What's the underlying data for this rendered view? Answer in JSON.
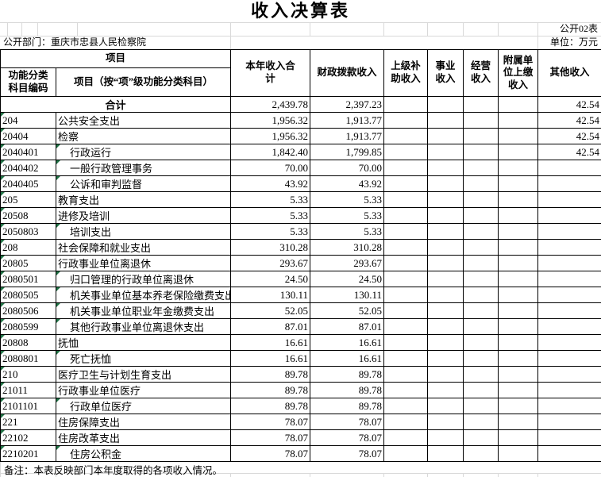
{
  "meta": {
    "title": "收入决算表",
    "sheet_label": "公开02表",
    "department_label": "公开部门：重庆市忠县人民检察院",
    "unit_label": "单位：万元",
    "note": "备注：本表反映部门本年度取得的各项收入情况。"
  },
  "colors": {
    "flag_green": "#217346",
    "grid_gray": "#d9d9d9",
    "border_black": "#000000"
  },
  "table": {
    "header": {
      "project_group": "项目",
      "code": "功能分类\n科目编码",
      "item": "项目（按“项”级功能分类科目）",
      "total": "本年收入合\n计",
      "fiscal": "财政拨款收入",
      "upper": "上级补\n助收入",
      "business": "事业\n收入",
      "operating": "经营\n收入",
      "affiliate": "附属单\n位上缴\n收入",
      "other": "其他收入"
    },
    "rows": [
      {
        "merged": true,
        "name": "合计",
        "total": "2,439.78",
        "fiscal": "2,397.23",
        "other": "42.54"
      },
      {
        "code": "204",
        "name": "公共安全支出",
        "code_flag": true,
        "total": "1,956.32",
        "fiscal": "1,913.77",
        "other": "42.54"
      },
      {
        "code": "20404",
        "name": "检察",
        "code_flag": true,
        "total": "1,956.32",
        "fiscal": "1,913.77",
        "other": "42.54"
      },
      {
        "code": "2040401",
        "name": "行政运行",
        "indent": true,
        "code_flag": true,
        "name_flag": true,
        "total": "1,842.40",
        "fiscal": "1,799.85",
        "other": "42.54"
      },
      {
        "code": "2040402",
        "name": "一般行政管理事务",
        "indent": true,
        "code_flag": true,
        "name_flag": true,
        "total": "70.00",
        "fiscal": "70.00"
      },
      {
        "code": "2040405",
        "name": "公诉和审判监督",
        "indent": true,
        "code_flag": true,
        "name_flag": true,
        "total": "43.92",
        "fiscal": "43.92"
      },
      {
        "code": "205",
        "name": "教育支出",
        "code_flag": true,
        "total": "5.33",
        "fiscal": "5.33"
      },
      {
        "code": "20508",
        "name": "进修及培训",
        "code_flag": true,
        "total": "5.33",
        "fiscal": "5.33"
      },
      {
        "code": "2050803",
        "name": "培训支出",
        "indent": true,
        "code_flag": true,
        "name_flag": true,
        "total": "5.33",
        "fiscal": "5.33"
      },
      {
        "code": "208",
        "name": "社会保障和就业支出",
        "code_flag": true,
        "total": "310.28",
        "fiscal": "310.28"
      },
      {
        "code": "20805",
        "name": "行政事业单位离退休",
        "code_flag": true,
        "total": "293.67",
        "fiscal": "293.67"
      },
      {
        "code": "2080501",
        "name": "归口管理的行政单位离退休",
        "indent": true,
        "code_flag": true,
        "name_flag": true,
        "total": "24.50",
        "fiscal": "24.50"
      },
      {
        "code": "2080505",
        "name": "机关事业单位基本养老保险缴费支出",
        "indent": true,
        "code_flag": true,
        "name_flag": true,
        "total": "130.11",
        "fiscal": "130.11"
      },
      {
        "code": "2080506",
        "name": "机关事业单位职业年金缴费支出",
        "indent": true,
        "code_flag": true,
        "name_flag": true,
        "total": "52.05",
        "fiscal": "52.05"
      },
      {
        "code": "2080599",
        "name": "其他行政事业单位离退休支出",
        "indent": true,
        "code_flag": true,
        "name_flag": true,
        "total": "87.01",
        "fiscal": "87.01"
      },
      {
        "code": "20808",
        "name": "抚恤",
        "code_flag": true,
        "total": "16.61",
        "fiscal": "16.61"
      },
      {
        "code": "2080801",
        "name": "死亡抚恤",
        "indent": true,
        "code_flag": true,
        "name_flag": true,
        "total": "16.61",
        "fiscal": "16.61"
      },
      {
        "code": "210",
        "name": "医疗卫生与计划生育支出",
        "code_flag": true,
        "total": "89.78",
        "fiscal": "89.78"
      },
      {
        "code": "21011",
        "name": "行政事业单位医疗",
        "code_flag": true,
        "total": "89.78",
        "fiscal": "89.78"
      },
      {
        "code": "2101101",
        "name": "行政单位医疗",
        "indent": true,
        "code_flag": true,
        "name_flag": true,
        "total": "89.78",
        "fiscal": "89.78"
      },
      {
        "code": "221",
        "name": "住房保障支出",
        "code_flag": true,
        "total": "78.07",
        "fiscal": "78.07"
      },
      {
        "code": "22102",
        "name": "住房改革支出",
        "code_flag": true,
        "total": "78.07",
        "fiscal": "78.07"
      },
      {
        "code": "2210201",
        "name": "住房公积金",
        "indent": true,
        "code_flag": true,
        "name_flag": true,
        "total": "78.07",
        "fiscal": "78.07"
      }
    ]
  }
}
